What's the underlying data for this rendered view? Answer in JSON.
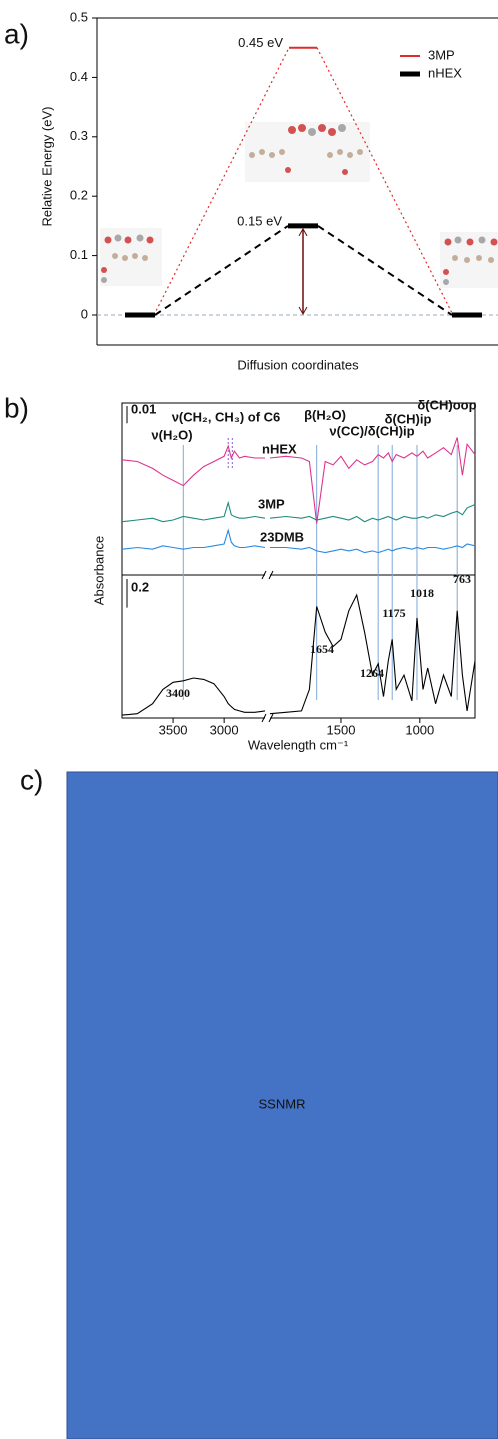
{
  "chart_data": [
    {
      "type": "energy",
      "panel": "a)",
      "ylabel": "Relative Energy (eV)",
      "xlabel": "Diffusion coordinates",
      "ylim": [
        0,
        0.5
      ],
      "yticks": [
        0,
        0.1,
        0.2,
        0.3,
        0.4,
        0.5
      ],
      "legend": "upper right",
      "series": [
        {
          "name": "3MP",
          "color": "#e02b2b",
          "values": [
            0,
            0.45,
            0
          ],
          "value_labels": [
            null,
            "0.45 eV",
            null
          ]
        },
        {
          "name": "nHEX",
          "color": "#000000",
          "values": [
            0,
            0.15,
            0
          ],
          "value_labels": [
            null,
            "0.15 eV",
            null
          ]
        }
      ]
    },
    {
      "type": "spectra",
      "panel": "b)",
      "ylabel": "Absorbance",
      "xlabel": "Wavelength cm⁻¹",
      "xlim": [
        4000,
        650
      ],
      "x_break": [
        2600,
        1950
      ],
      "xticks": [
        3500,
        3000,
        1500,
        1000
      ],
      "ylim": [
        0,
        0.1
      ],
      "y2lim": [
        0,
        1
      ],
      "scale_bar": 0.01,
      "y2_scale_bar": 0.2,
      "x": [
        4000,
        3850,
        3700,
        3600,
        3500,
        3400,
        3300,
        3200,
        3100,
        3000,
        2960,
        2930,
        2900,
        2850,
        2800,
        2700,
        2600,
        1950,
        1850,
        1750,
        1700,
        1654,
        1600,
        1550,
        1500,
        1450,
        1400,
        1350,
        1300,
        1264,
        1230,
        1200,
        1175,
        1150,
        1100,
        1050,
        1018,
        980,
        950,
        900,
        850,
        800,
        763,
        730,
        700,
        650
      ],
      "series": [
        {
          "name": "nHEX",
          "color": "#e0338f",
          "values": [
            0.067,
            0.066,
            0.062,
            0.058,
            0.055,
            0.052,
            0.058,
            0.063,
            0.066,
            0.069,
            0.075,
            0.068,
            0.072,
            0.068,
            0.069,
            0.068,
            0.068,
            0.068,
            0.069,
            0.068,
            0.066,
            0.03,
            0.066,
            0.064,
            0.069,
            0.062,
            0.067,
            0.064,
            0.066,
            0.07,
            0.068,
            0.071,
            0.066,
            0.07,
            0.068,
            0.071,
            0.069,
            0.072,
            0.068,
            0.071,
            0.074,
            0.07,
            0.08,
            0.058,
            0.076,
            0.07
          ]
        },
        {
          "name": "3MP",
          "color": "#1f8a80",
          "values": [
            0.031,
            0.032,
            0.033,
            0.031,
            0.032,
            0.034,
            0.033,
            0.032,
            0.033,
            0.034,
            0.042,
            0.035,
            0.034,
            0.033,
            0.033,
            0.034,
            0.033,
            0.033,
            0.034,
            0.033,
            0.034,
            0.032,
            0.033,
            0.034,
            0.033,
            0.032,
            0.034,
            0.031,
            0.033,
            0.032,
            0.033,
            0.034,
            0.033,
            0.032,
            0.034,
            0.033,
            0.033,
            0.034,
            0.033,
            0.035,
            0.034,
            0.036,
            0.037,
            0.035,
            0.039,
            0.041
          ]
        },
        {
          "name": "23DMB",
          "color": "#2a8ae0",
          "values": [
            0.015,
            0.016,
            0.015,
            0.017,
            0.016,
            0.015,
            0.016,
            0.016,
            0.017,
            0.018,
            0.026,
            0.019,
            0.017,
            0.016,
            0.016,
            0.017,
            0.016,
            0.016,
            0.016,
            0.015,
            0.016,
            0.014,
            0.013,
            0.014,
            0.015,
            0.014,
            0.015,
            0.013,
            0.014,
            0.013,
            0.014,
            0.015,
            0.014,
            0.015,
            0.016,
            0.015,
            0.016,
            0.015,
            0.016,
            0.016,
            0.015,
            0.016,
            0.017,
            0.016,
            0.018,
            0.017
          ]
        },
        {
          "color": "#000000",
          "axis": "y2",
          "values": [
            0.02,
            0.03,
            0.1,
            0.2,
            0.25,
            0.26,
            0.28,
            0.27,
            0.24,
            0.15,
            0.1,
            0.08,
            0.06,
            0.05,
            0.04,
            0.04,
            0.05,
            0.03,
            0.04,
            0.05,
            0.2,
            0.78,
            0.6,
            0.5,
            0.55,
            0.75,
            0.86,
            0.6,
            0.3,
            0.38,
            0.15,
            0.4,
            0.55,
            0.2,
            0.3,
            0.12,
            0.7,
            0.2,
            0.35,
            0.1,
            0.3,
            0.15,
            0.75,
            0.3,
            0.05,
            0.4
          ]
        }
      ],
      "guide_lines": [
        3400,
        2960,
        2920,
        1654,
        1264,
        1175,
        1018,
        763
      ],
      "peak_labels": [
        3400,
        1654,
        1264,
        1175,
        1018,
        763
      ],
      "band_labels": [
        "ν(H₂O)",
        "ν(CH₂, CH₃) of C6",
        "β(H₂O)",
        "ν(CC)/δ(CH)ip",
        "δ(CH)ip",
        "δ(CH)oop"
      ]
    }
  ],
  "panel_c": {
    "label": "c)",
    "text": "SSNMR"
  }
}
